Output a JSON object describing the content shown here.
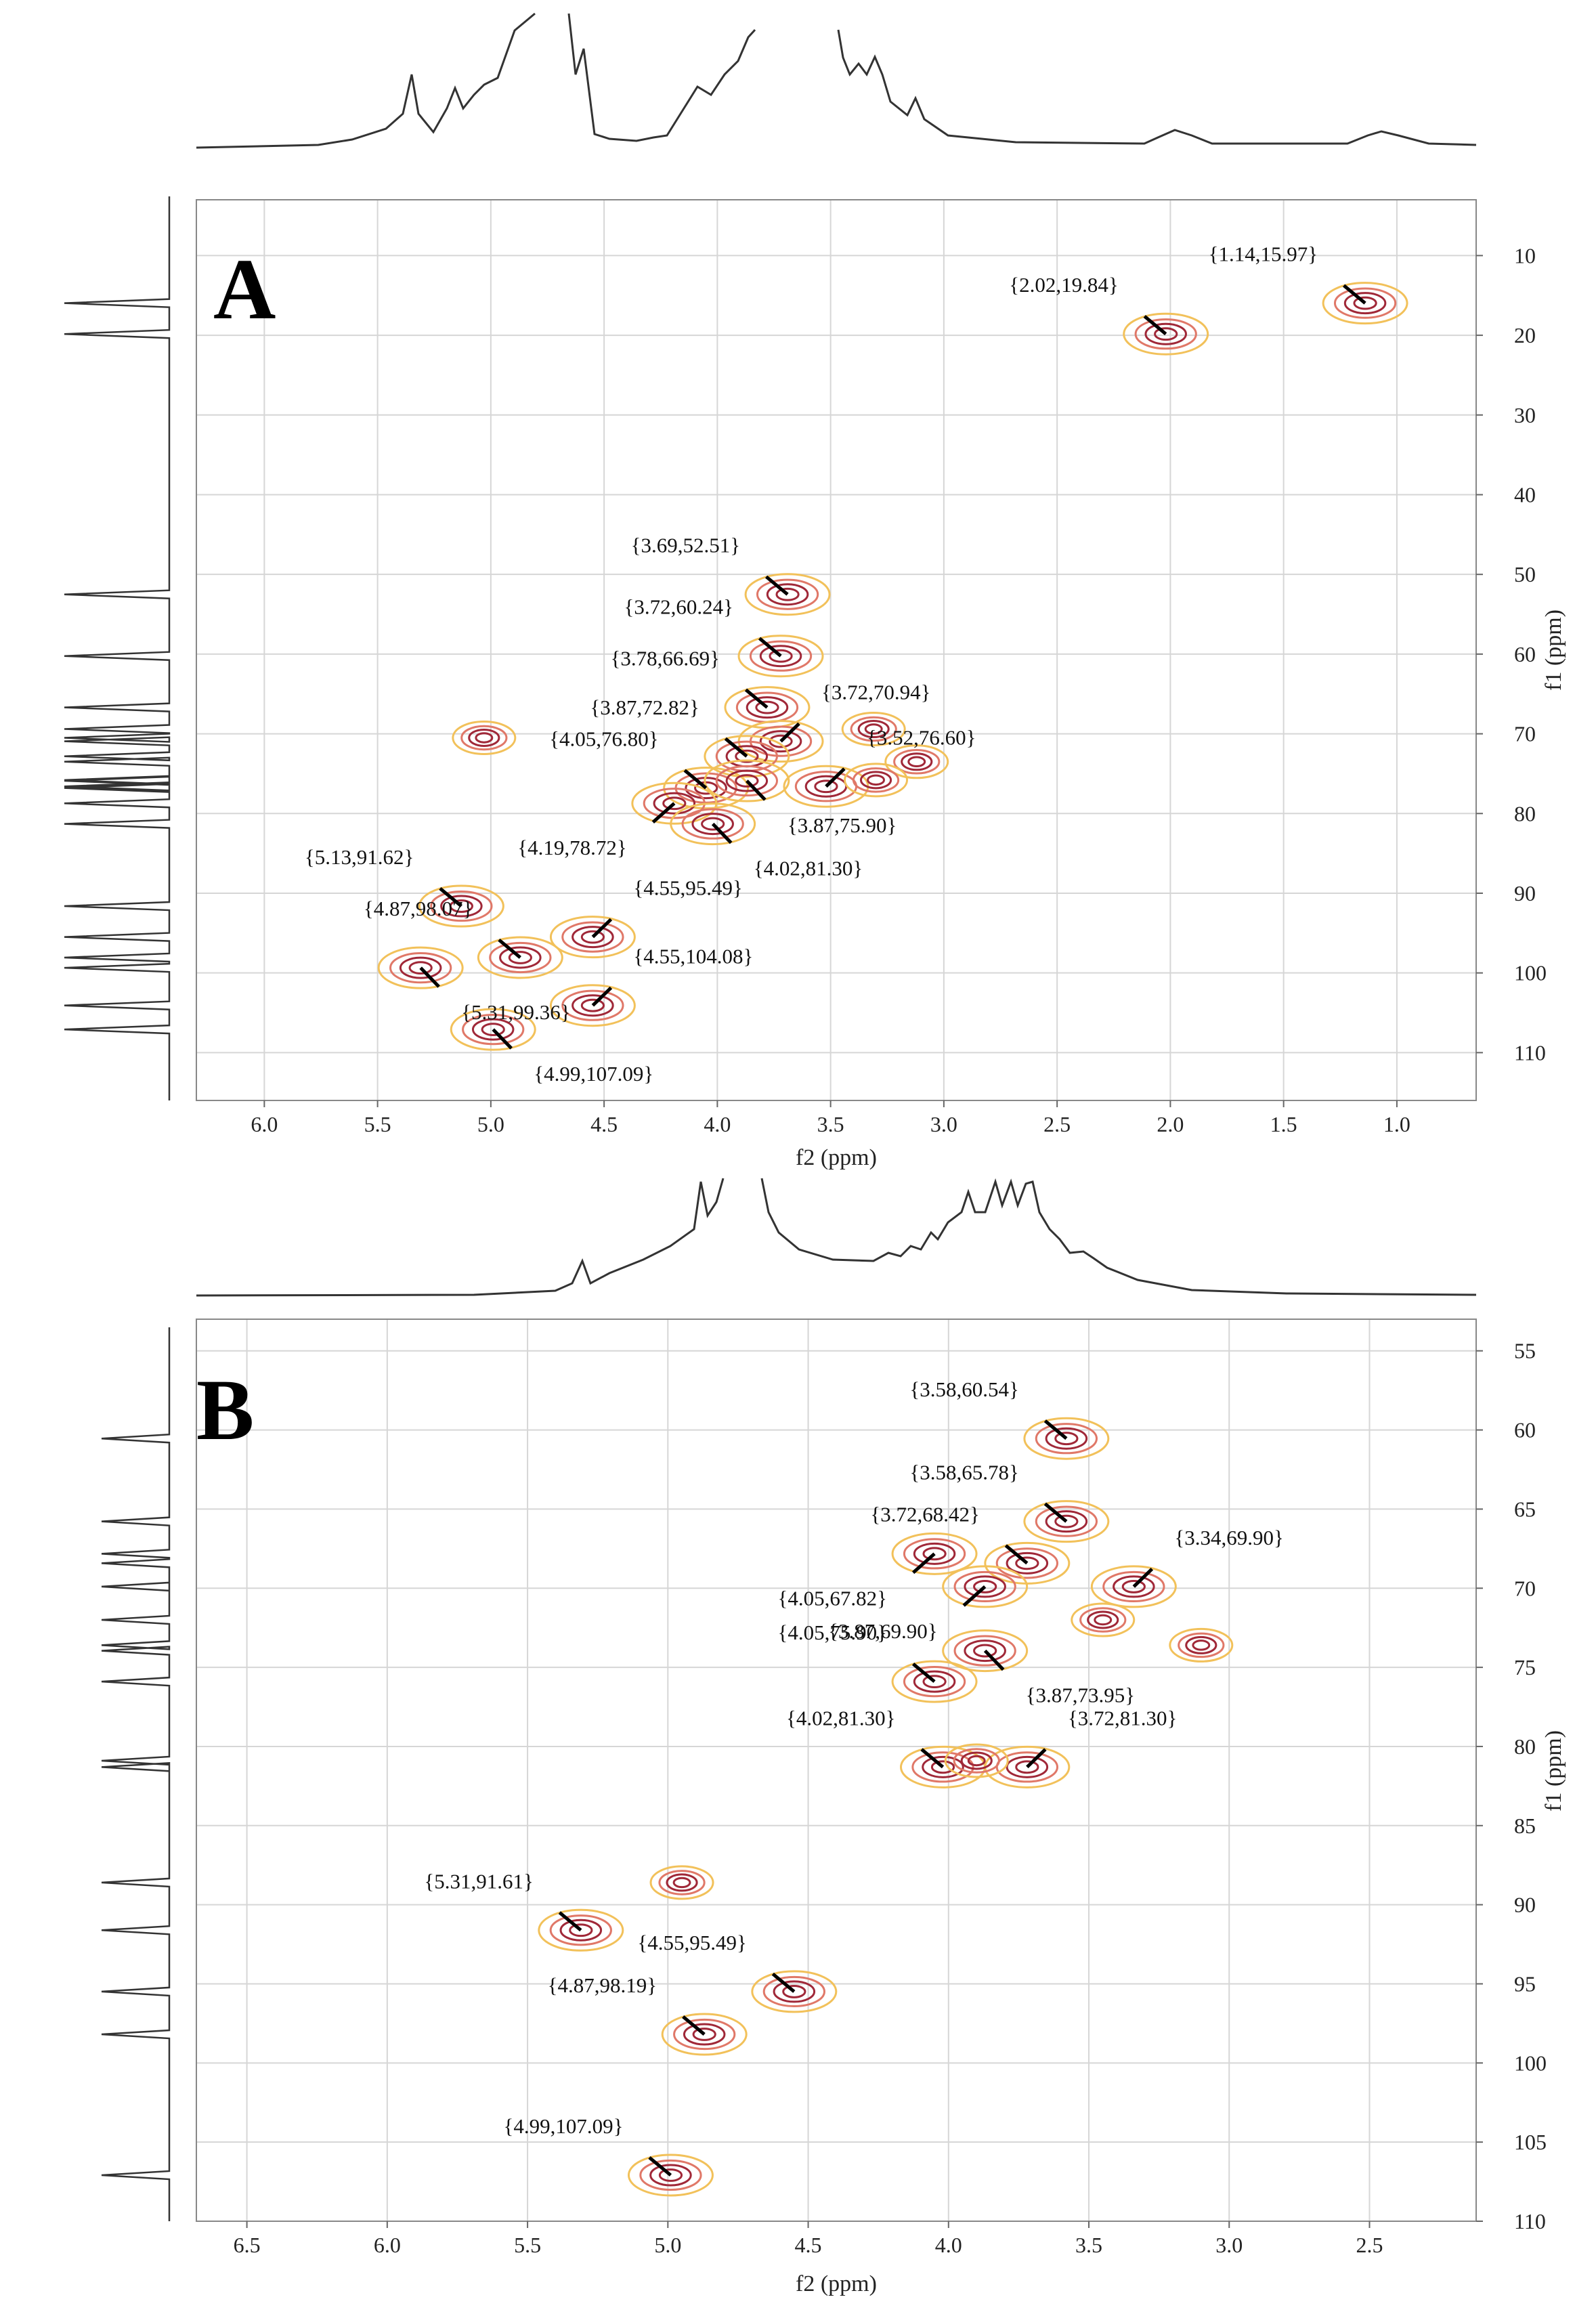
{
  "chart_data": [
    {
      "type": "scatter",
      "panel_label": "A",
      "title": "",
      "xlabel": "f2 (ppm)",
      "ylabel": "f1 (ppm)",
      "xlim": [
        6.3,
        0.65
      ],
      "ylim": [
        3,
        116
      ],
      "x_ticks": [
        "6.0",
        "5.5",
        "5.0",
        "4.5",
        "4.0",
        "3.5",
        "3.0",
        "2.5",
        "2.0",
        "1.5",
        "1.0"
      ],
      "y_ticks": [
        "10",
        "20",
        "30",
        "40",
        "50",
        "60",
        "70",
        "80",
        "90",
        "100",
        "110"
      ],
      "peaks": [
        {
          "x": 1.14,
          "y": 15.97,
          "label": "{1.14,15.97}",
          "side": "above-left"
        },
        {
          "x": 2.02,
          "y": 19.84,
          "label": "{2.02,19.84}",
          "side": "above-left"
        },
        {
          "x": 3.69,
          "y": 52.51,
          "label": "{3.69,52.51}",
          "side": "above-left"
        },
        {
          "x": 3.72,
          "y": 60.24,
          "label": "{3.72,60.24}",
          "side": "above-left"
        },
        {
          "x": 3.78,
          "y": 66.69,
          "label": "{3.78,66.69}",
          "side": "above-left"
        },
        {
          "x": 3.72,
          "y": 70.94,
          "label": "{3.72,70.94}",
          "side": "above-right"
        },
        {
          "x": 3.87,
          "y": 72.82,
          "label": "{3.87,72.82}",
          "side": "above-left"
        },
        {
          "x": 4.05,
          "y": 76.8,
          "label": "{4.05,76.80}",
          "side": "above-left"
        },
        {
          "x": 3.52,
          "y": 76.6,
          "label": "{3.52,76.60}",
          "side": "above-right"
        },
        {
          "x": 3.87,
          "y": 75.9,
          "label": "{3.87,75.90}",
          "side": "below-right"
        },
        {
          "x": 4.19,
          "y": 78.72,
          "label": "{4.19,78.72}",
          "side": "below-left"
        },
        {
          "x": 4.02,
          "y": 81.3,
          "label": "{4.02,81.30}",
          "side": "below-right"
        },
        {
          "x": 5.13,
          "y": 91.62,
          "label": "{5.13,91.62}",
          "side": "above-left"
        },
        {
          "x": 4.55,
          "y": 95.49,
          "label": "{4.55,95.49}",
          "side": "above-right"
        },
        {
          "x": 4.87,
          "y": 98.07,
          "label": "{4.87,98.07}",
          "side": "above-left"
        },
        {
          "x": 4.55,
          "y": 104.08,
          "label": "{4.55,104.08}",
          "side": "above-right"
        },
        {
          "x": 5.31,
          "y": 99.36,
          "label": "{5.31,99.36}",
          "side": "below-right"
        },
        {
          "x": 4.99,
          "y": 107.09,
          "label": "{4.99,107.09}",
          "side": "below-right"
        }
      ],
      "unlabeled_peaks": [
        {
          "x": 5.03,
          "y": 70.5
        },
        {
          "x": 3.31,
          "y": 69.4
        },
        {
          "x": 3.12,
          "y": 73.5
        },
        {
          "x": 3.3,
          "y": 75.8
        }
      ]
    },
    {
      "type": "scatter",
      "panel_label": "B",
      "title": "",
      "xlabel": "f2 (ppm)",
      "ylabel": "f1 (ppm)",
      "xlim": [
        6.68,
        2.12
      ],
      "ylim": [
        53,
        110
      ],
      "x_ticks": [
        "6.5",
        "6.0",
        "5.5",
        "5.0",
        "4.5",
        "4.0",
        "3.5",
        "3.0",
        "2.5"
      ],
      "y_ticks": [
        "55",
        "60",
        "65",
        "70",
        "75",
        "80",
        "85",
        "90",
        "95",
        "100",
        "105",
        "110"
      ],
      "peaks": [
        {
          "x": 3.58,
          "y": 60.54,
          "label": "{3.58,60.54}",
          "side": "above-left"
        },
        {
          "x": 3.58,
          "y": 65.78,
          "label": "{3.58,65.78}",
          "side": "above-left"
        },
        {
          "x": 3.72,
          "y": 68.42,
          "label": "{3.72,68.42}",
          "side": "above-left"
        },
        {
          "x": 3.34,
          "y": 69.9,
          "label": "{3.34,69.90}",
          "side": "above-right"
        },
        {
          "x": 4.05,
          "y": 67.82,
          "label": "{4.05,67.82}",
          "side": "below-left"
        },
        {
          "x": 3.87,
          "y": 69.9,
          "label": "{3.87,69.90}",
          "side": "below-left"
        },
        {
          "x": 4.05,
          "y": 75.9,
          "label": "{4.05,75.90}",
          "side": "above-left"
        },
        {
          "x": 3.87,
          "y": 73.95,
          "label": "{3.87,73.95}",
          "side": "below-right"
        },
        {
          "x": 4.02,
          "y": 81.3,
          "label": "{4.02,81.30}",
          "side": "above-left"
        },
        {
          "x": 3.72,
          "y": 81.3,
          "label": "{3.72,81.30}",
          "side": "above-right"
        },
        {
          "x": 5.31,
          "y": 91.61,
          "label": "{5.31,91.61}",
          "side": "above-left"
        },
        {
          "x": 4.55,
          "y": 95.49,
          "label": "{4.55,95.49}",
          "side": "above-left"
        },
        {
          "x": 4.87,
          "y": 98.19,
          "label": "{4.87,98.19}",
          "side": "above-left"
        },
        {
          "x": 4.99,
          "y": 107.09,
          "label": "{4.99,107.09}",
          "side": "above-left"
        }
      ],
      "unlabeled_peaks": [
        {
          "x": 3.45,
          "y": 72.0
        },
        {
          "x": 3.9,
          "y": 80.9
        },
        {
          "x": 3.1,
          "y": 73.6
        },
        {
          "x": 4.95,
          "y": 88.6
        }
      ]
    }
  ],
  "colors": {
    "contour_outer": "#f2c15a",
    "contour_mid": "#e07868",
    "contour_inner": "#a02838",
    "negative": "#33d6ee",
    "grid": "#d6d6d6",
    "trace": "#333333"
  }
}
